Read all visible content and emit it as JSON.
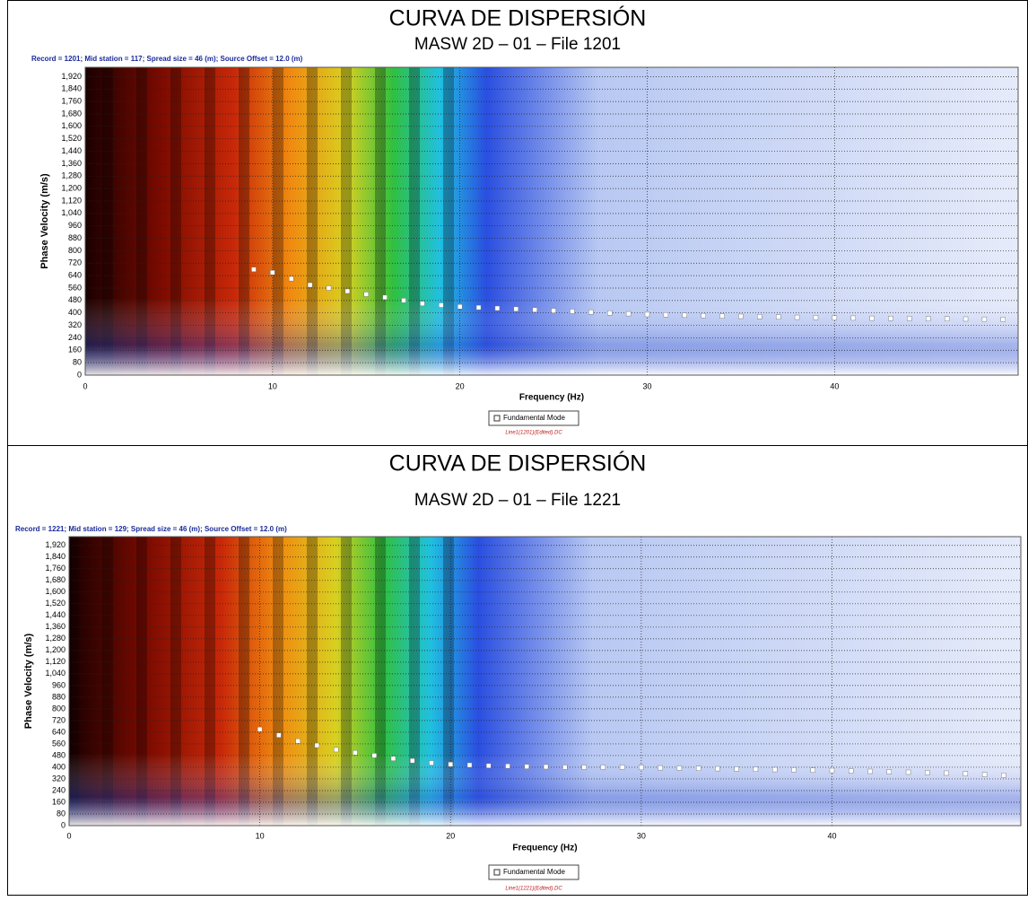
{
  "chart_data": [
    {
      "type": "scatter",
      "title": "CURVA DE DISPERSIÓN",
      "subtitle": "MASW 2D – 01 – File 1201",
      "header": "Record = 1201; Mid station = 117; Spread size = 46 (m); Source Offset = 12.0 (m)",
      "file_label": "Line1(1201)(Edited).DC",
      "x_label": "Frequency (Hz)",
      "y_label": "Phase Velocity (m/s)",
      "grid": true,
      "xlim": [
        0,
        49.8
      ],
      "ylim": [
        0,
        1980
      ],
      "xticks": [
        0,
        10,
        20,
        30,
        40
      ],
      "yticks": [
        0,
        80,
        160,
        240,
        320,
        400,
        480,
        560,
        640,
        720,
        800,
        880,
        960,
        {
          "value": 1040,
          "label": "1,040"
        },
        {
          "value": 1120,
          "label": "1,120"
        },
        {
          "value": 1200,
          "label": "1,200"
        },
        {
          "value": 1280,
          "label": "1,280"
        },
        {
          "value": 1360,
          "label": "1,360"
        },
        {
          "value": 1440,
          "label": "1,440"
        },
        {
          "value": 1520,
          "label": "1,520"
        },
        {
          "value": 1600,
          "label": "1,600"
        },
        {
          "value": 1680,
          "label": "1,680"
        },
        {
          "value": 1760,
          "label": "1,760"
        },
        {
          "value": 1840,
          "label": "1,840"
        },
        {
          "value": 1920,
          "label": "1,920"
        }
      ],
      "x": [
        9,
        10,
        11,
        12,
        13,
        14,
        15,
        16,
        17,
        18,
        19,
        20,
        21,
        22,
        23,
        24,
        25,
        26,
        27,
        28,
        29,
        30,
        31,
        32,
        33,
        34,
        35,
        36,
        37,
        38,
        39,
        40,
        41,
        42,
        43,
        44,
        45,
        46,
        47,
        48,
        49
      ],
      "series": [
        {
          "name": "Fundamental Mode",
          "color": "#ffffff",
          "values": [
            680,
            660,
            620,
            580,
            560,
            540,
            520,
            500,
            480,
            460,
            450,
            440,
            435,
            430,
            425,
            420,
            415,
            410,
            405,
            400,
            395,
            390,
            388,
            385,
            383,
            380,
            378,
            376,
            374,
            372,
            370,
            368,
            367,
            366,
            365,
            364,
            363,
            362,
            361,
            360,
            359
          ]
        }
      ]
    },
    {
      "type": "scatter",
      "title": "CURVA DE DISPERSIÓN",
      "subtitle": "MASW 2D – 01 – File 1221",
      "header": "Record = 1221; Mid station = 129; Spread size = 46 (m); Source Offset = 12.0 (m)",
      "file_label": "Line1(1221)(Edited).DC",
      "x_label": "Frequency (Hz)",
      "y_label": "Phase Velocity (m/s)",
      "grid": true,
      "xlim": [
        0,
        49.9
      ],
      "ylim": [
        0,
        1980
      ],
      "xticks": [
        0,
        10,
        20,
        30,
        40
      ],
      "yticks": [
        0,
        80,
        160,
        240,
        320,
        400,
        480,
        560,
        640,
        720,
        800,
        880,
        960,
        {
          "value": 1040,
          "label": "1,040"
        },
        {
          "value": 1120,
          "label": "1,120"
        },
        {
          "value": 1200,
          "label": "1,200"
        },
        {
          "value": 1280,
          "label": "1,280"
        },
        {
          "value": 1360,
          "label": "1,360"
        },
        {
          "value": 1440,
          "label": "1,440"
        },
        {
          "value": 1520,
          "label": "1,520"
        },
        {
          "value": 1600,
          "label": "1,600"
        },
        {
          "value": 1680,
          "label": "1,680"
        },
        {
          "value": 1760,
          "label": "1,760"
        },
        {
          "value": 1840,
          "label": "1,840"
        },
        {
          "value": 1920,
          "label": "1,920"
        }
      ],
      "x": [
        10,
        11,
        12,
        13,
        14,
        15,
        16,
        17,
        18,
        19,
        20,
        21,
        22,
        23,
        24,
        25,
        26,
        27,
        28,
        29,
        30,
        31,
        32,
        33,
        34,
        35,
        36,
        37,
        38,
        39,
        40,
        41,
        42,
        43,
        44,
        45,
        46,
        47,
        48,
        49
      ],
      "series": [
        {
          "name": "Fundamental Mode",
          "color": "#ffffff",
          "values": [
            660,
            620,
            580,
            550,
            520,
            500,
            480,
            460,
            445,
            430,
            420,
            415,
            410,
            408,
            405,
            403,
            400,
            400,
            400,
            400,
            398,
            396,
            394,
            392,
            390,
            388,
            386,
            384,
            382,
            380,
            378,
            375,
            372,
            369,
            366,
            363,
            360,
            355,
            350,
            345
          ]
        }
      ]
    }
  ]
}
